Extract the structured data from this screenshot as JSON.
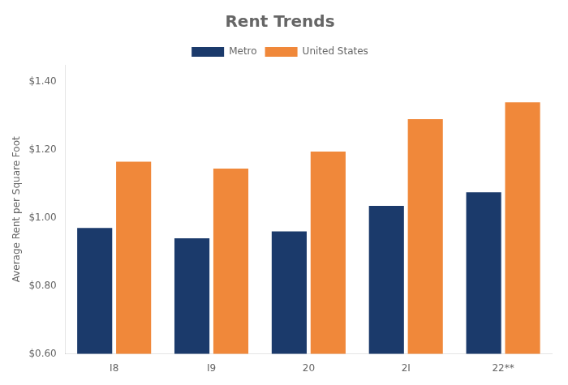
{
  "chart_data": {
    "type": "bar",
    "title": "Rent Trends",
    "y_label": "Average Rent per Square Foot",
    "categories": [
      "I8",
      "I9",
      "20",
      "2I",
      "22**"
    ],
    "series": [
      {
        "name": "Metro",
        "color": "#1B3A6B",
        "values": [
          0.97,
          0.94,
          0.96,
          1.035,
          1.075
        ]
      },
      {
        "name": "United States",
        "color": "#F0883A",
        "values": [
          1.165,
          1.145,
          1.195,
          1.29,
          1.34
        ]
      }
    ],
    "ylim": [
      0.6,
      1.45
    ],
    "yticks": [
      {
        "value": 0.6,
        "label": "$0.60"
      },
      {
        "value": 0.8,
        "label": "$0.80"
      },
      {
        "value": 1.0,
        "label": "$1.00"
      },
      {
        "value": 1.2,
        "label": "$1.20"
      },
      {
        "value": 1.4,
        "label": "$1.40"
      }
    ],
    "grid": false,
    "legend": "top"
  }
}
